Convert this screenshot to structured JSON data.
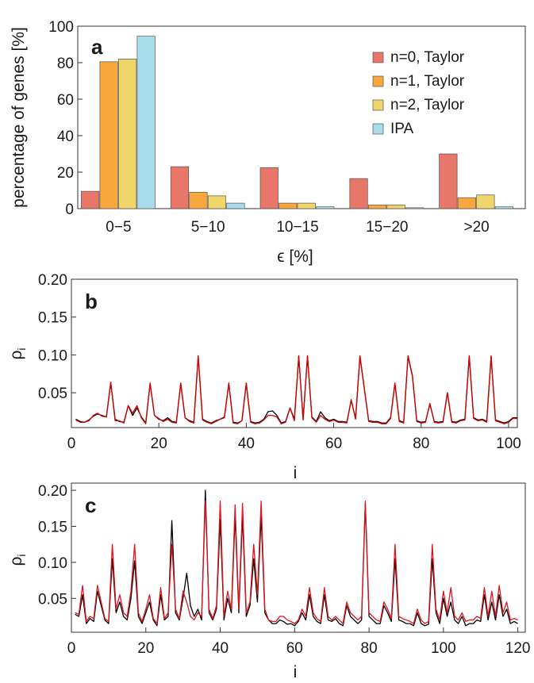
{
  "chart_data": [
    {
      "type": "bar",
      "panel": "a",
      "xlabel": "ϵ [%]",
      "ylabel": "percentage of genes [%]",
      "ylim": [
        0,
        100
      ],
      "yticks": [
        "0",
        "20",
        "40",
        "60",
        "80",
        "100"
      ],
      "categories": [
        "0−5",
        "5−10",
        "10−15",
        "15−20",
        ">20"
      ],
      "legend_position": "top-right",
      "series": [
        {
          "name": "n=0, Taylor",
          "color": "#e8776a",
          "values": [
            9.5,
            23,
            22.5,
            16.5,
            30
          ]
        },
        {
          "name": "n=1, Taylor",
          "color": "#f8a73c",
          "values": [
            80.5,
            9,
            3,
            2,
            6
          ]
        },
        {
          "name": "n=2, Taylor",
          "color": "#f0d56a",
          "values": [
            82,
            7,
            3,
            2,
            7.5
          ]
        },
        {
          "name": "IPA",
          "color": "#a8dceb",
          "values": [
            94.5,
            3,
            1,
            0.5,
            1
          ]
        }
      ]
    },
    {
      "type": "line",
      "panel": "b",
      "xlabel": "i",
      "ylabel": "ρ",
      "ylabel_sub": "i",
      "xlim": [
        0,
        102
      ],
      "ylim": [
        0.004,
        0.2
      ],
      "xticks": [
        "0",
        "20",
        "40",
        "60",
        "80",
        "100"
      ],
      "yticks": [
        "0.05",
        "0.10",
        "0.15",
        "0.20"
      ],
      "x_start": 1,
      "series": [
        {
          "color": "#000000",
          "values": [
            0.015,
            0.012,
            0.011,
            0.014,
            0.019,
            0.022,
            0.02,
            0.018,
            0.063,
            0.015,
            0.012,
            0.011,
            0.033,
            0.02,
            0.03,
            0.018,
            0.01,
            0.062,
            0.02,
            0.015,
            0.013,
            0.017,
            0.012,
            0.011,
            0.062,
            0.017,
            0.013,
            0.011,
            0.098,
            0.015,
            0.012,
            0.01,
            0.013,
            0.015,
            0.018,
            0.062,
            0.011,
            0.01,
            0.013,
            0.062,
            0.012,
            0.01,
            0.011,
            0.015,
            0.025,
            0.026,
            0.02,
            0.01,
            0.012,
            0.03,
            0.015,
            0.098,
            0.015,
            0.098,
            0.018,
            0.012,
            0.025,
            0.017,
            0.013,
            0.015,
            0.012,
            0.012,
            0.011,
            0.04,
            0.016,
            0.098,
            0.055,
            0.013,
            0.012,
            0.012,
            0.01,
            0.01,
            0.017,
            0.062,
            0.013,
            0.011,
            0.098,
            0.072,
            0.013,
            0.011,
            0.012,
            0.035,
            0.012,
            0.011,
            0.012,
            0.05,
            0.012,
            0.011,
            0.014,
            0.015,
            0.098,
            0.017,
            0.014,
            0.015,
            0.012,
            0.098,
            0.014,
            0.012,
            0.01,
            0.012,
            0.017,
            0.017
          ]
        },
        {
          "color": "#d40000",
          "values": [
            0.014,
            0.011,
            0.011,
            0.013,
            0.02,
            0.023,
            0.019,
            0.018,
            0.064,
            0.013,
            0.013,
            0.01,
            0.033,
            0.023,
            0.033,
            0.017,
            0.009,
            0.063,
            0.02,
            0.016,
            0.012,
            0.015,
            0.011,
            0.01,
            0.063,
            0.017,
            0.012,
            0.01,
            0.099,
            0.014,
            0.011,
            0.009,
            0.012,
            0.015,
            0.017,
            0.063,
            0.01,
            0.009,
            0.013,
            0.063,
            0.011,
            0.009,
            0.01,
            0.014,
            0.02,
            0.02,
            0.018,
            0.009,
            0.011,
            0.03,
            0.013,
            0.099,
            0.014,
            0.099,
            0.017,
            0.011,
            0.02,
            0.015,
            0.012,
            0.014,
            0.011,
            0.011,
            0.01,
            0.041,
            0.015,
            0.099,
            0.056,
            0.012,
            0.011,
            0.011,
            0.009,
            0.009,
            0.016,
            0.063,
            0.012,
            0.01,
            0.099,
            0.073,
            0.012,
            0.01,
            0.011,
            0.036,
            0.011,
            0.01,
            0.011,
            0.05,
            0.011,
            0.01,
            0.013,
            0.014,
            0.099,
            0.016,
            0.013,
            0.014,
            0.011,
            0.099,
            0.013,
            0.011,
            0.009,
            0.011,
            0.016,
            0.016
          ]
        }
      ]
    },
    {
      "type": "line",
      "panel": "c",
      "xlabel": "i",
      "ylabel": "ρ",
      "ylabel_sub": "i",
      "xlim": [
        0,
        122
      ],
      "ylim": [
        0.003,
        0.21
      ],
      "xticks": [
        "0",
        "20",
        "40",
        "60",
        "80",
        "100",
        "120"
      ],
      "yticks": [
        "0.05",
        "0.10",
        "0.15",
        "0.20"
      ],
      "x_start": 1,
      "series": [
        {
          "color": "#000000",
          "values": [
            0.028,
            0.025,
            0.055,
            0.015,
            0.022,
            0.018,
            0.06,
            0.04,
            0.02,
            0.015,
            0.105,
            0.03,
            0.045,
            0.025,
            0.02,
            0.05,
            0.102,
            0.025,
            0.015,
            0.03,
            0.045,
            0.02,
            0.012,
            0.055,
            0.02,
            0.025,
            0.158,
            0.03,
            0.02,
            0.05,
            0.085,
            0.04,
            0.025,
            0.035,
            0.02,
            0.2,
            0.03,
            0.02,
            0.035,
            0.16,
            0.02,
            0.05,
            0.03,
            0.165,
            0.03,
            0.165,
            0.025,
            0.04,
            0.105,
            0.045,
            0.165,
            0.03,
            0.02,
            0.015,
            0.015,
            0.02,
            0.018,
            0.014,
            0.015,
            0.012,
            0.018,
            0.03,
            0.02,
            0.055,
            0.025,
            0.018,
            0.015,
            0.055,
            0.02,
            0.018,
            0.022,
            0.015,
            0.012,
            0.04,
            0.025,
            0.02,
            0.015,
            0.02,
            0.182,
            0.025,
            0.02,
            0.015,
            0.015,
            0.04,
            0.03,
            0.018,
            0.105,
            0.02,
            0.018,
            0.015,
            0.015,
            0.012,
            0.03,
            0.015,
            0.012,
            0.014,
            0.105,
            0.03,
            0.015,
            0.05,
            0.025,
            0.045,
            0.02,
            0.015,
            0.025,
            0.012,
            0.015,
            0.015,
            0.02,
            0.018,
            0.055,
            0.02,
            0.045,
            0.02,
            0.055,
            0.025,
            0.035,
            0.015,
            0.018,
            0.015
          ]
        },
        {
          "color": "#e0141e",
          "values": [
            0.03,
            0.028,
            0.068,
            0.018,
            0.025,
            0.022,
            0.068,
            0.045,
            0.022,
            0.018,
            0.125,
            0.035,
            0.055,
            0.03,
            0.025,
            0.06,
            0.125,
            0.03,
            0.018,
            0.035,
            0.055,
            0.022,
            0.015,
            0.065,
            0.022,
            0.03,
            0.125,
            0.035,
            0.022,
            0.06,
            0.045,
            0.025,
            0.02,
            0.03,
            0.025,
            0.185,
            0.035,
            0.022,
            0.04,
            0.185,
            0.025,
            0.06,
            0.035,
            0.18,
            0.035,
            0.182,
            0.03,
            0.045,
            0.125,
            0.055,
            0.185,
            0.035,
            0.02,
            0.018,
            0.018,
            0.025,
            0.025,
            0.02,
            0.018,
            0.015,
            0.02,
            0.035,
            0.025,
            0.065,
            0.03,
            0.022,
            0.018,
            0.065,
            0.025,
            0.02,
            0.025,
            0.02,
            0.015,
            0.045,
            0.03,
            0.025,
            0.02,
            0.025,
            0.185,
            0.03,
            0.025,
            0.02,
            0.018,
            0.045,
            0.035,
            0.022,
            0.125,
            0.025,
            0.022,
            0.02,
            0.018,
            0.015,
            0.035,
            0.02,
            0.015,
            0.018,
            0.125,
            0.035,
            0.02,
            0.06,
            0.03,
            0.065,
            0.025,
            0.02,
            0.03,
            0.018,
            0.02,
            0.02,
            0.025,
            0.022,
            0.065,
            0.025,
            0.06,
            0.025,
            0.068,
            0.03,
            0.045,
            0.02,
            0.022,
            0.02
          ]
        }
      ]
    }
  ]
}
